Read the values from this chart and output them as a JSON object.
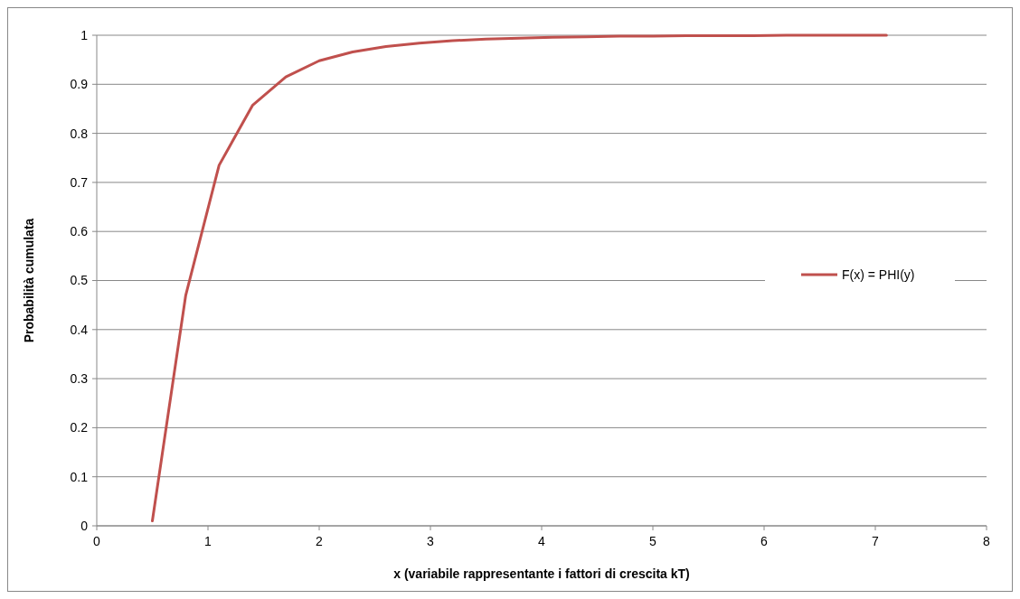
{
  "chart_data": {
    "type": "line",
    "xlabel": "x (variabile rappresentante i fattori di crescita kT)",
    "ylabel": "Probabilità cumulata",
    "x": [
      0.5,
      0.8,
      1.1,
      1.4,
      1.7,
      2.0,
      2.3,
      2.6,
      2.9,
      3.2,
      3.5,
      3.8,
      4.1,
      4.4,
      4.7,
      5.0,
      5.3,
      5.6,
      5.9,
      6.2,
      6.5,
      6.8,
      7.1
    ],
    "series": [
      {
        "name": "F(x) = PHI(y)",
        "color": "#c0504d",
        "values": [
          0.01,
          0.47,
          0.735,
          0.857,
          0.915,
          0.948,
          0.966,
          0.977,
          0.984,
          0.989,
          0.992,
          0.994,
          0.996,
          0.997,
          0.998,
          0.998,
          0.999,
          0.999,
          0.999,
          1,
          1,
          1,
          1
        ]
      }
    ],
    "xlim": [
      0,
      8
    ],
    "xticks": [
      0,
      1,
      2,
      3,
      4,
      5,
      6,
      7,
      8
    ],
    "ylim": [
      0,
      1
    ],
    "yticks": [
      0,
      0.1,
      0.2,
      0.3,
      0.4,
      0.5,
      0.6,
      0.7,
      0.8,
      0.9,
      1
    ],
    "grid": "y",
    "legend": "right",
    "marker": "none",
    "line_style": "solid"
  }
}
